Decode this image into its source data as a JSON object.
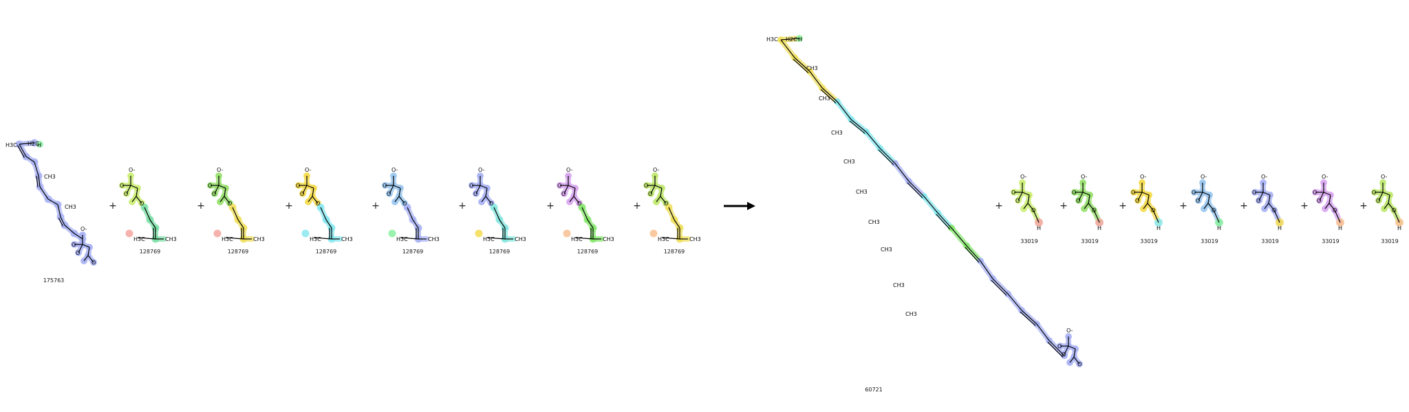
{
  "reactants": [
    {
      "id": "175763",
      "hl": "#aab4f5"
    },
    {
      "id": "128769",
      "hl": "#ccee77",
      "hl2": "#7fe0a8",
      "end": "#f4a6a0"
    },
    {
      "id": "128769",
      "hl": "#99e070",
      "hl2": "#f0e060",
      "end": "#f4a6a0"
    },
    {
      "id": "128769",
      "hl": "#f5dc50",
      "hl2": "#88e8f0",
      "end": "#88e8f0"
    },
    {
      "id": "128769",
      "hl": "#9cc8f0",
      "hl2": "#aab4f5",
      "end": "#88f0a0"
    },
    {
      "id": "128769",
      "hl": "#aab4f5",
      "hl2": "#88e8e0",
      "end": "#f5dc50"
    },
    {
      "id": "128769",
      "hl": "#d8a8f0",
      "hl2": "#88e870",
      "end": "#f8c090"
    },
    {
      "id": "128769",
      "hl": "#bfe870",
      "hl2": "#f0e060",
      "end": "#f8c090"
    }
  ],
  "products": [
    {
      "id": "60721"
    },
    {
      "id": "33019",
      "hl": "#ccee77",
      "h": "#f4a6a0"
    },
    {
      "id": "33019",
      "hl": "#99e070",
      "h": "#f4a6a0"
    },
    {
      "id": "33019",
      "hl": "#f5dc50",
      "h": "#88e8f0"
    },
    {
      "id": "33019",
      "hl": "#9cc8f0",
      "h": "#88f0a0"
    },
    {
      "id": "33019",
      "hl": "#aab4f5",
      "h": "#f5dc50"
    },
    {
      "id": "33019",
      "hl": "#d8a8f0",
      "h": "#f8c090"
    },
    {
      "id": "33019",
      "hl": "#bfe870",
      "h": "#f8c090"
    }
  ],
  "text": {
    "plus": "+",
    "ch3": "CH3",
    "h3c": "H3C",
    "h2c": "H2C",
    "h": "H",
    "o": "O",
    "o_minus": "O-",
    "p": "P"
  }
}
